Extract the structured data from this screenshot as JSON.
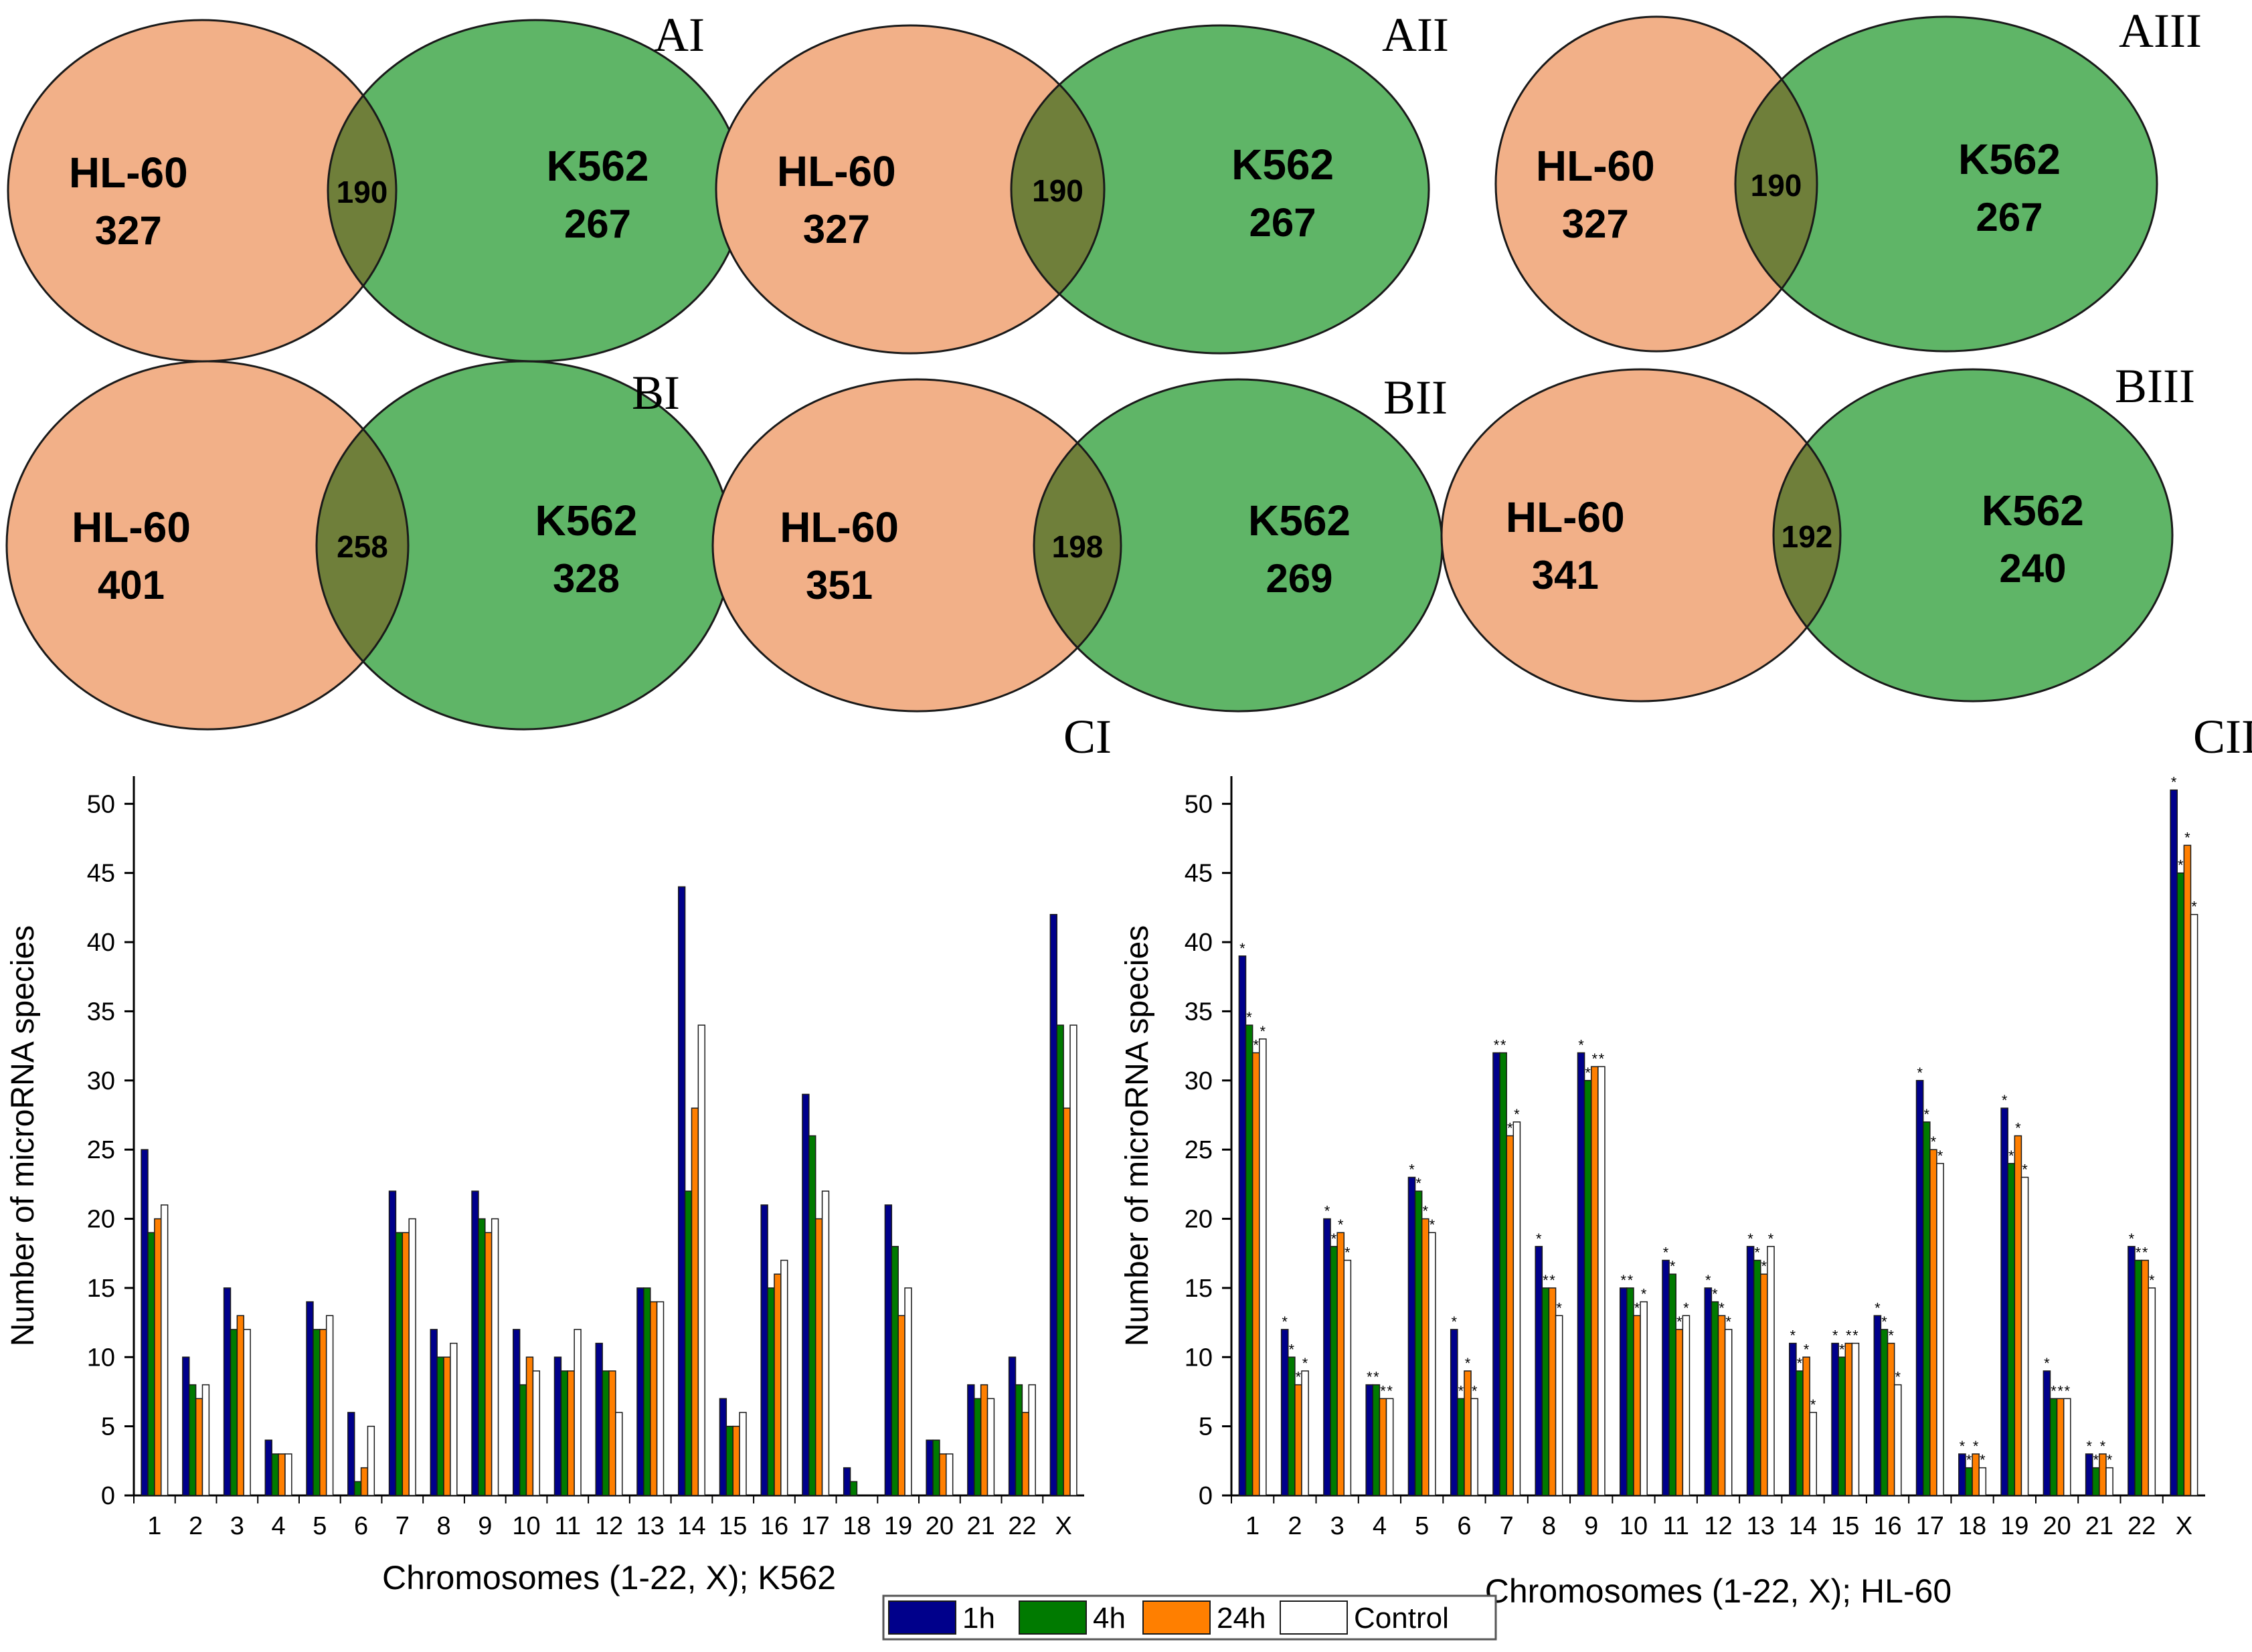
{
  "colors": {
    "hl60_fill": "#f2b088",
    "k562_fill": "#5fb567",
    "overlap_fill": "#6f7f3a",
    "bar_1h": "#00008b",
    "bar_4h": "#007a00",
    "bar_24h": "#ff7f00",
    "bar_control": "#ffffff"
  },
  "venn": [
    {
      "panel": "AI",
      "left_name": "HL-60",
      "left_count": "327",
      "overlap": "190",
      "right_name": "K562",
      "right_count": "267"
    },
    {
      "panel": "AII",
      "left_name": "HL-60",
      "left_count": "327",
      "overlap": "190",
      "right_name": "K562",
      "right_count": "267"
    },
    {
      "panel": "AIII",
      "left_name": "HL-60",
      "left_count": "327",
      "overlap": "190",
      "right_name": "K562",
      "right_count": "267"
    },
    {
      "panel": "BI",
      "left_name": "HL-60",
      "left_count": "401",
      "overlap": "258",
      "right_name": "K562",
      "right_count": "328"
    },
    {
      "panel": "BII",
      "left_name": "HL-60",
      "left_count": "351",
      "overlap": "198",
      "right_name": "K562",
      "right_count": "269"
    },
    {
      "panel": "BIII",
      "left_name": "HL-60",
      "left_count": "341",
      "overlap": "192",
      "right_name": "K562",
      "right_count": "240"
    }
  ],
  "chart_data": [
    {
      "panel": "CI",
      "type": "bar",
      "xlabel": "Chromosomes (1-22, X); K562",
      "ylabel": "Number of microRNA species",
      "ylim": [
        0,
        52
      ],
      "yticks": [
        0,
        5,
        10,
        15,
        20,
        25,
        30,
        35,
        40,
        45,
        50
      ],
      "categories": [
        "1",
        "2",
        "3",
        "4",
        "5",
        "6",
        "7",
        "8",
        "9",
        "10",
        "11",
        "12",
        "13",
        "14",
        "15",
        "16",
        "17",
        "18",
        "19",
        "20",
        "21",
        "22",
        "X"
      ],
      "series": [
        {
          "name": "1h",
          "values": [
            25,
            10,
            15,
            4,
            14,
            6,
            22,
            12,
            22,
            12,
            10,
            11,
            15,
            44,
            7,
            21,
            29,
            2,
            21,
            4,
            8,
            10,
            42
          ]
        },
        {
          "name": "4h",
          "values": [
            19,
            8,
            12,
            3,
            12,
            1,
            19,
            10,
            20,
            8,
            9,
            9,
            15,
            22,
            5,
            15,
            26,
            1,
            18,
            4,
            7,
            8,
            34
          ]
        },
        {
          "name": "24h",
          "values": [
            20,
            7,
            13,
            3,
            12,
            2,
            19,
            10,
            19,
            10,
            9,
            9,
            14,
            28,
            5,
            16,
            20,
            0,
            13,
            3,
            8,
            6,
            28
          ]
        },
        {
          "name": "Control",
          "values": [
            21,
            8,
            12,
            3,
            13,
            5,
            20,
            11,
            20,
            9,
            12,
            6,
            14,
            34,
            6,
            17,
            22,
            0,
            15,
            3,
            7,
            8,
            34
          ]
        }
      ],
      "asterisks": false
    },
    {
      "panel": "CII",
      "type": "bar",
      "xlabel": "Chromosomes (1-22, X); HL-60",
      "ylabel": "Number of microRNA species",
      "ylim": [
        0,
        52
      ],
      "yticks": [
        0,
        5,
        10,
        15,
        20,
        25,
        30,
        35,
        40,
        45,
        50
      ],
      "categories": [
        "1",
        "2",
        "3",
        "4",
        "5",
        "6",
        "7",
        "8",
        "9",
        "10",
        "11",
        "12",
        "13",
        "14",
        "15",
        "16",
        "17",
        "18",
        "19",
        "20",
        "21",
        "22",
        "X"
      ],
      "series": [
        {
          "name": "1h",
          "values": [
            39,
            12,
            20,
            8,
            23,
            12,
            32,
            18,
            32,
            15,
            17,
            15,
            18,
            11,
            11,
            13,
            30,
            3,
            28,
            9,
            3,
            18,
            51
          ]
        },
        {
          "name": "4h",
          "values": [
            34,
            10,
            18,
            8,
            22,
            7,
            32,
            15,
            30,
            15,
            16,
            14,
            17,
            9,
            10,
            12,
            27,
            2,
            24,
            7,
            2,
            17,
            45
          ]
        },
        {
          "name": "24h",
          "values": [
            32,
            8,
            19,
            7,
            20,
            9,
            26,
            15,
            31,
            13,
            12,
            13,
            16,
            10,
            11,
            11,
            25,
            3,
            26,
            7,
            3,
            17,
            47
          ]
        },
        {
          "name": "Control",
          "values": [
            33,
            9,
            17,
            7,
            19,
            7,
            27,
            13,
            31,
            14,
            13,
            12,
            18,
            6,
            11,
            8,
            24,
            2,
            23,
            7,
            2,
            15,
            42
          ]
        }
      ],
      "asterisks": true
    }
  ],
  "legend": [
    {
      "key": "bar_1h",
      "label": "1h"
    },
    {
      "key": "bar_4h",
      "label": "4h"
    },
    {
      "key": "bar_24h",
      "label": "24h"
    },
    {
      "key": "bar_control",
      "label": "Control"
    }
  ]
}
